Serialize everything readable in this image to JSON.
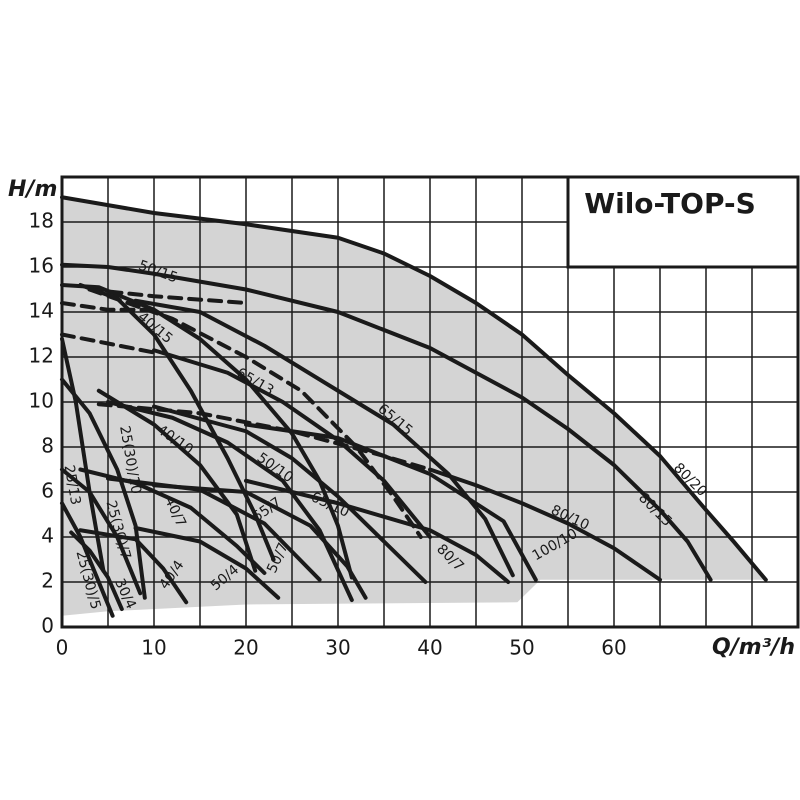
{
  "chart_data": {
    "type": "line",
    "title": "Wilo-TOP-S",
    "x_label": "Q/m³/h",
    "y_label": "H/m",
    "xlim": [
      0,
      80
    ],
    "ylim": [
      0,
      20
    ],
    "xticks": [
      0,
      10,
      20,
      30,
      40,
      50,
      60
    ],
    "yticks": [
      0,
      2,
      4,
      6,
      8,
      10,
      12,
      14,
      16,
      18
    ],
    "xgrid": [
      0,
      5,
      10,
      15,
      20,
      25,
      30,
      35,
      40,
      45,
      50,
      55,
      60,
      65,
      70,
      75,
      80
    ],
    "ygrid": [
      0,
      2,
      4,
      6,
      8,
      10,
      12,
      14,
      16,
      18,
      20
    ],
    "color": "#1a1a1a",
    "shaded_area": {
      "color": "#d4d4d4",
      "x": [
        0,
        10,
        20,
        30,
        35,
        40,
        45,
        50,
        55,
        60,
        65,
        70,
        73,
        76.5,
        52,
        49.5,
        20,
        5,
        0
      ],
      "values": [
        19.1,
        18.4,
        17.9,
        17.3,
        16.6,
        15.6,
        14.4,
        13,
        11.2,
        9.5,
        7.6,
        5.2,
        3.8,
        2.1,
        2.1,
        1.1,
        1.0,
        0.7,
        0.5
      ]
    },
    "series": [
      {
        "name": "80/20",
        "x": [
          0,
          10,
          20,
          30,
          35,
          40,
          45,
          50,
          55,
          60,
          65,
          70,
          73,
          76.5
        ],
        "values": [
          19.1,
          18.4,
          17.9,
          17.3,
          16.6,
          15.6,
          14.4,
          13,
          11.2,
          9.5,
          7.6,
          5.2,
          3.8,
          2.1
        ]
      },
      {
        "name": "80/15",
        "x": [
          0,
          5,
          10,
          20,
          30,
          40,
          50,
          55,
          60,
          65,
          68,
          70.5
        ],
        "values": [
          16.1,
          16,
          15.7,
          15,
          14,
          12.4,
          10.2,
          8.8,
          7.2,
          5.2,
          3.8,
          2.1
        ]
      },
      {
        "name": "80/10",
        "x": [
          40,
          45,
          50,
          55,
          60,
          65
        ],
        "values": [
          7,
          6.3,
          5.5,
          4.6,
          3.5,
          2.1
        ]
      },
      {
        "dashed": true,
        "x": [
          4,
          15,
          25,
          35,
          40
        ],
        "values": [
          9.9,
          9.5,
          8.7,
          7.6,
          7
        ]
      },
      {
        "name": "100/10",
        "x": [
          20,
          30,
          40,
          48,
          51.5
        ],
        "values": [
          9,
          8.4,
          6.8,
          4.7,
          2.1
        ]
      },
      {
        "name": "65/15",
        "x": [
          8,
          15,
          22,
          30,
          36,
          42,
          46,
          49
        ],
        "values": [
          14.5,
          14,
          12.5,
          10.5,
          9,
          6.8,
          4.8,
          2.3
        ]
      },
      {
        "dashed": true,
        "x": [
          0,
          5,
          10
        ],
        "values": [
          14.4,
          14.1,
          14.1
        ]
      },
      {
        "name": "50/15",
        "x": [
          0,
          4,
          10,
          15,
          20,
          25,
          28,
          30,
          31.5
        ],
        "values": [
          15.2,
          15.1,
          14.1,
          12.8,
          11,
          8.6,
          6.5,
          4.5,
          2.2
        ]
      },
      {
        "dashed": true,
        "x": [
          3,
          10,
          20
        ],
        "values": [
          15,
          14.7,
          14.4
        ]
      },
      {
        "name": "40/15",
        "x": [
          2,
          6,
          10,
          14,
          18,
          21,
          23
        ],
        "values": [
          15.2,
          14.6,
          13,
          10.5,
          7.5,
          5,
          3
        ]
      },
      {
        "name": "65/13",
        "x": [
          10,
          18,
          24,
          30,
          35,
          40
        ],
        "values": [
          12.3,
          11.3,
          10,
          8.3,
          6.5,
          4
        ]
      },
      {
        "dashed": true,
        "x": [
          0,
          5,
          10
        ],
        "values": [
          13,
          12.6,
          12.2
        ]
      },
      {
        "dashed": true,
        "x": [
          3,
          12,
          20,
          26,
          32,
          36,
          39
        ],
        "values": [
          15,
          13.7,
          12,
          10.5,
          8,
          5.8,
          4
        ]
      },
      {
        "name": "65/10",
        "x": [
          10,
          20,
          25,
          30,
          35,
          39.5
        ],
        "values": [
          9.8,
          8.7,
          7.5,
          5.8,
          3.8,
          2
        ]
      },
      {
        "name": "50/10",
        "x": [
          5,
          12,
          18,
          24,
          28,
          31.5
        ],
        "values": [
          10,
          9.3,
          8.2,
          6.5,
          4.3,
          1.2
        ]
      },
      {
        "name": "40/10",
        "x": [
          4,
          10,
          15,
          19,
          21
        ],
        "values": [
          10.5,
          9,
          7.2,
          5,
          2.5
        ]
      },
      {
        "name": "25(30)/10",
        "x": [
          0,
          3,
          6,
          8,
          9
        ],
        "values": [
          11,
          9.5,
          7,
          4.5,
          1.3
        ]
      },
      {
        "name": "40/7",
        "x": [
          2,
          8,
          14,
          19,
          22
        ],
        "values": [
          7,
          6.4,
          5.3,
          3.6,
          2.4
        ]
      },
      {
        "name": "65/7",
        "x": [
          10,
          20,
          27,
          31,
          33
        ],
        "values": [
          6.3,
          6,
          4.5,
          2.7,
          1.3
        ]
      },
      {
        "name": "50/7",
        "x": [
          5,
          15,
          22,
          28
        ],
        "values": [
          6.6,
          6.1,
          4.6,
          2.1
        ]
      },
      {
        "name": "80/7",
        "x": [
          20,
          30,
          40,
          45,
          48.5
        ],
        "values": [
          6.5,
          5.5,
          4.3,
          3.2,
          2
        ]
      },
      {
        "name": "25/13",
        "x": [
          0,
          1.5,
          3,
          4.5
        ],
        "values": [
          12.8,
          10,
          6,
          2.5
        ]
      },
      {
        "name": "25(30)/7",
        "x": [
          0,
          3,
          6,
          8.5
        ],
        "values": [
          7,
          6,
          4,
          1.5
        ]
      },
      {
        "name": "40/4",
        "x": [
          2,
          8,
          11,
          13.5
        ],
        "values": [
          4.3,
          3.9,
          2.6,
          1.1
        ]
      },
      {
        "name": "50/4",
        "x": [
          8,
          15,
          20,
          23.5
        ],
        "values": [
          4.4,
          3.8,
          2.6,
          1.3
        ]
      },
      {
        "name": "30/4",
        "x": [
          1,
          3,
          5,
          6.5
        ],
        "values": [
          4.2,
          3.4,
          2.2,
          0.8
        ]
      },
      {
        "name": "25(30)/5",
        "x": [
          0,
          2,
          4,
          5.5
        ],
        "values": [
          5.5,
          4,
          2,
          0.5
        ]
      }
    ]
  }
}
